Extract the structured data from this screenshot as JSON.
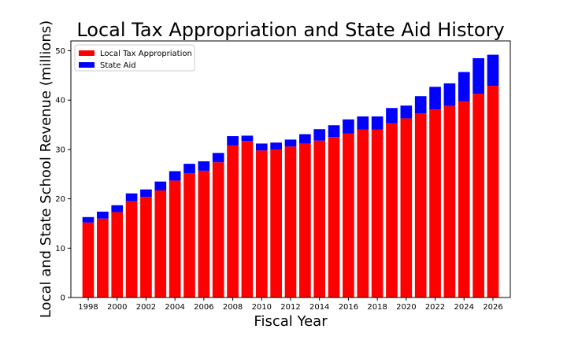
{
  "chart_data": {
    "type": "bar",
    "stacked": true,
    "title": "Local Tax Appropriation and State Aid History",
    "xlabel": "Fiscal Year",
    "ylabel": "Local and State School Revenue (millions)",
    "ylim": [
      0,
      52
    ],
    "yticks": [
      0,
      10,
      20,
      30,
      40,
      50
    ],
    "xticks": [
      "1998",
      "2000",
      "2002",
      "2004",
      "2006",
      "2008",
      "2010",
      "2012",
      "2014",
      "2016",
      "2018",
      "2020",
      "2022",
      "2024",
      "2026"
    ],
    "grid": false,
    "legend_position": "top-left",
    "categories": [
      1998,
      1999,
      2000,
      2001,
      2002,
      2003,
      2004,
      2005,
      2006,
      2007,
      2008,
      2009,
      2010,
      2011,
      2012,
      2013,
      2014,
      2015,
      2016,
      2017,
      2018,
      2019,
      2020,
      2021,
      2022,
      2023,
      2024,
      2025,
      2026
    ],
    "series": [
      {
        "name": "Local Tax Appropriation",
        "color": "#ff0000",
        "values": [
          15.2,
          16.0,
          17.3,
          19.5,
          20.4,
          21.7,
          23.7,
          25.2,
          25.7,
          27.4,
          30.8,
          31.7,
          29.8,
          30.0,
          30.6,
          31.2,
          31.8,
          32.5,
          33.2,
          34.0,
          34.0,
          35.3,
          36.3,
          37.3,
          38.1,
          38.8,
          39.8,
          41.3,
          42.9
        ]
      },
      {
        "name": "State Aid",
        "color": "#0000ff",
        "values": [
          1.1,
          1.4,
          1.4,
          1.6,
          1.5,
          1.8,
          1.9,
          1.9,
          1.9,
          1.9,
          1.9,
          1.1,
          1.4,
          1.4,
          1.4,
          1.9,
          2.3,
          2.4,
          2.9,
          2.7,
          2.7,
          3.1,
          2.6,
          3.5,
          4.6,
          4.6,
          5.9,
          7.2,
          6.3
        ]
      }
    ]
  }
}
